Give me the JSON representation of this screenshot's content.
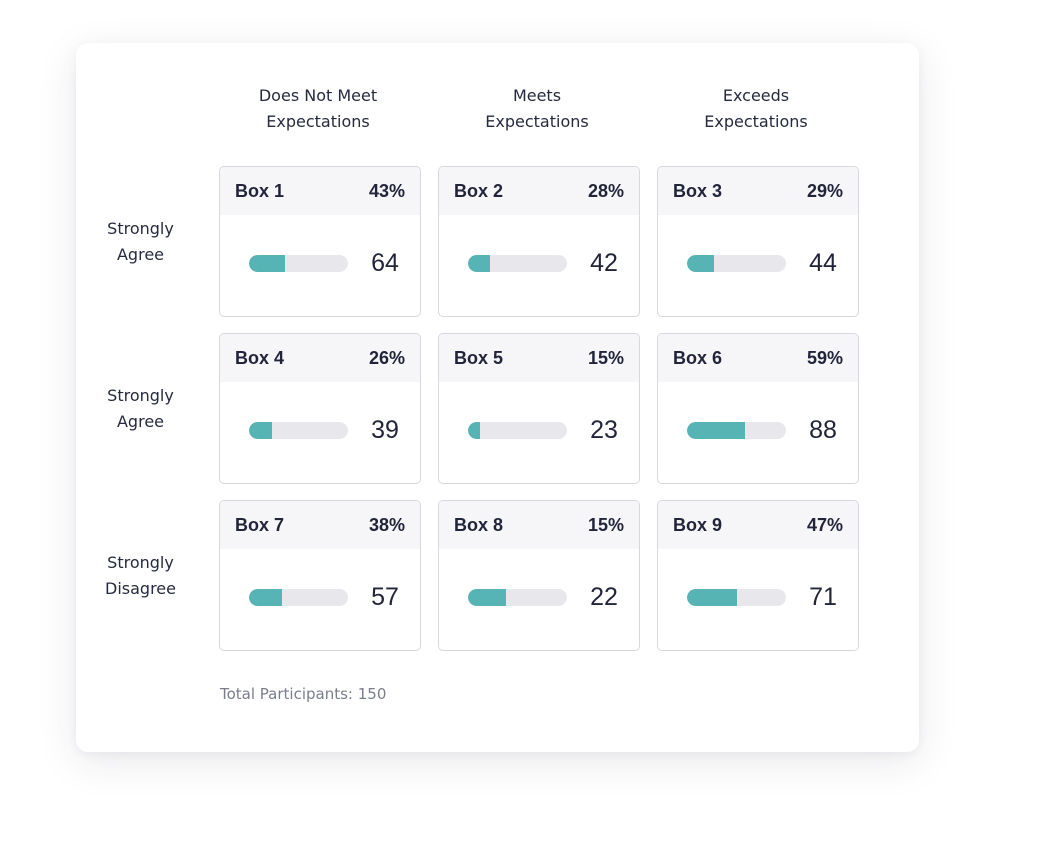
{
  "columns": [
    {
      "line1": "Does Not Meet",
      "line2": "Expectations"
    },
    {
      "line1": "Meets",
      "line2": "Expectations"
    },
    {
      "line1": "Exceeds",
      "line2": "Expectations"
    }
  ],
  "rows": [
    {
      "line1": "Strongly",
      "line2": "Agree"
    },
    {
      "line1": "Strongly",
      "line2": "Agree"
    },
    {
      "line1": "Strongly",
      "line2": "Disagree"
    }
  ],
  "boxes": [
    {
      "title": "Box 1",
      "percent": "43%",
      "count": "64",
      "fill": 0.36
    },
    {
      "title": "Box 2",
      "percent": "28%",
      "count": "42",
      "fill": 0.22
    },
    {
      "title": "Box 3",
      "percent": "29%",
      "count": "44",
      "fill": 0.27
    },
    {
      "title": "Box 4",
      "percent": "26%",
      "count": "39",
      "fill": 0.23
    },
    {
      "title": "Box 5",
      "percent": "15%",
      "count": "23",
      "fill": 0.12
    },
    {
      "title": "Box 6",
      "percent": "59%",
      "count": "88",
      "fill": 0.59
    },
    {
      "title": "Box 7",
      "percent": "38%",
      "count": "57",
      "fill": 0.33
    },
    {
      "title": "Box 8",
      "percent": "15%",
      "count": "22",
      "fill": 0.38
    },
    {
      "title": "Box 9",
      "percent": "47%",
      "count": "71",
      "fill": 0.51
    }
  ],
  "footer": {
    "label": "Total Participants: 150"
  },
  "colors": {
    "bar_fill": "#56b4b5",
    "bar_track": "#e8e8ec",
    "box_header": "#f6f6f9"
  }
}
